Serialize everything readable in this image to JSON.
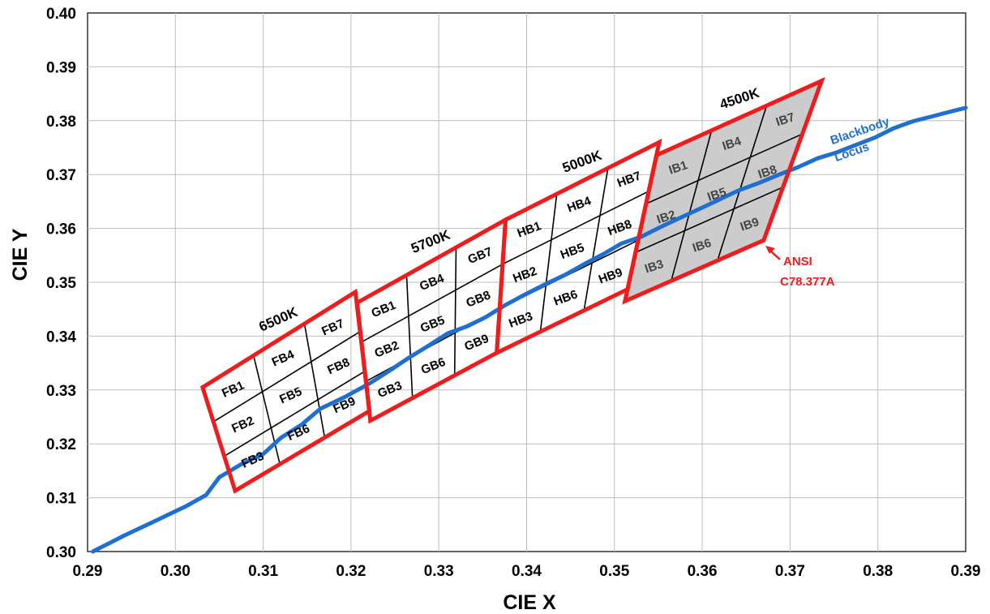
{
  "chart_data": {
    "type": "scatter",
    "xlabel": "CIE X",
    "ylabel": "CIE Y",
    "xlim": [
      0.29,
      0.39
    ],
    "ylim": [
      0.3,
      0.4
    ],
    "x_ticks": [
      "0.29",
      "0.30",
      "0.31",
      "0.32",
      "0.33",
      "0.34",
      "0.35",
      "0.36",
      "0.37",
      "0.38",
      "0.39"
    ],
    "y_ticks": [
      "0.30",
      "0.31",
      "0.32",
      "0.33",
      "0.34",
      "0.35",
      "0.36",
      "0.37",
      "0.38",
      "0.39",
      "0.40"
    ],
    "grid": true,
    "colors": {
      "locus": "#1f6fd0",
      "ansi_outline": "#ee1c1c",
      "bin_lines": "#000000",
      "shaded_fill": "#cccccc",
      "ansi_text": "#ee1c1c",
      "locus_text": "#1f6fd0"
    },
    "blackbody_locus": {
      "label_line1": "Blackbody",
      "label_line2": "Locus",
      "points": [
        [
          0.2906,
          0.3
        ],
        [
          0.2942,
          0.303
        ],
        [
          0.2981,
          0.306
        ],
        [
          0.3013,
          0.3085
        ],
        [
          0.3035,
          0.3105
        ],
        [
          0.305,
          0.3138
        ],
        [
          0.3075,
          0.3162
        ],
        [
          0.31,
          0.3181
        ],
        [
          0.312,
          0.3211
        ],
        [
          0.3144,
          0.3236
        ],
        [
          0.3165,
          0.3265
        ],
        [
          0.3193,
          0.3287
        ],
        [
          0.3222,
          0.3313
        ],
        [
          0.3244,
          0.3336
        ],
        [
          0.3266,
          0.336
        ],
        [
          0.3288,
          0.3382
        ],
        [
          0.331,
          0.3405
        ],
        [
          0.3332,
          0.3418
        ],
        [
          0.3353,
          0.3435
        ],
        [
          0.3375,
          0.3457
        ],
        [
          0.3399,
          0.3478
        ],
        [
          0.3422,
          0.3497
        ],
        [
          0.3444,
          0.3514
        ],
        [
          0.3466,
          0.3534
        ],
        [
          0.3487,
          0.3552
        ],
        [
          0.3508,
          0.3572
        ],
        [
          0.3531,
          0.3585
        ],
        [
          0.3553,
          0.3603
        ],
        [
          0.3574,
          0.3619
        ],
        [
          0.3598,
          0.3637
        ],
        [
          0.362,
          0.3654
        ],
        [
          0.3642,
          0.3671
        ],
        [
          0.3664,
          0.3684
        ],
        [
          0.3686,
          0.3699
        ],
        [
          0.3708,
          0.3713
        ],
        [
          0.3731,
          0.373
        ],
        [
          0.3753,
          0.3741
        ],
        [
          0.3775,
          0.3755
        ],
        [
          0.3797,
          0.3769
        ],
        [
          0.3818,
          0.3786
        ],
        [
          0.384,
          0.3799
        ],
        [
          0.3862,
          0.3808
        ],
        [
          0.3883,
          0.3817
        ],
        [
          0.39,
          0.3824
        ]
      ]
    },
    "cct_groups": [
      {
        "cct": "6500K",
        "prefix": "FB",
        "outline": [
          [
            0.3031,
            0.3305
          ],
          [
            0.3068,
            0.3113
          ],
          [
            0.3221,
            0.3261
          ],
          [
            0.3205,
            0.3482
          ]
        ],
        "shaded": false
      },
      {
        "cct": "5700K",
        "prefix": "GB",
        "outline": [
          [
            0.3207,
            0.3462
          ],
          [
            0.3222,
            0.3243
          ],
          [
            0.3366,
            0.3369
          ],
          [
            0.3376,
            0.3616
          ]
        ],
        "shaded": false
      },
      {
        "cct": "5000K",
        "prefix": "HB",
        "outline": [
          [
            0.3376,
            0.3616
          ],
          [
            0.3366,
            0.3369
          ],
          [
            0.3515,
            0.3487
          ],
          [
            0.3551,
            0.376
          ]
        ],
        "shaded": false
      },
      {
        "cct": "4500K",
        "prefix": "IB",
        "outline": [
          [
            0.3548,
            0.3736
          ],
          [
            0.3512,
            0.3465
          ],
          [
            0.367,
            0.3578
          ],
          [
            0.3736,
            0.3874
          ]
        ],
        "shaded": true
      }
    ],
    "annotation": {
      "line1": "ANSI",
      "line2": "C78.377A"
    }
  }
}
